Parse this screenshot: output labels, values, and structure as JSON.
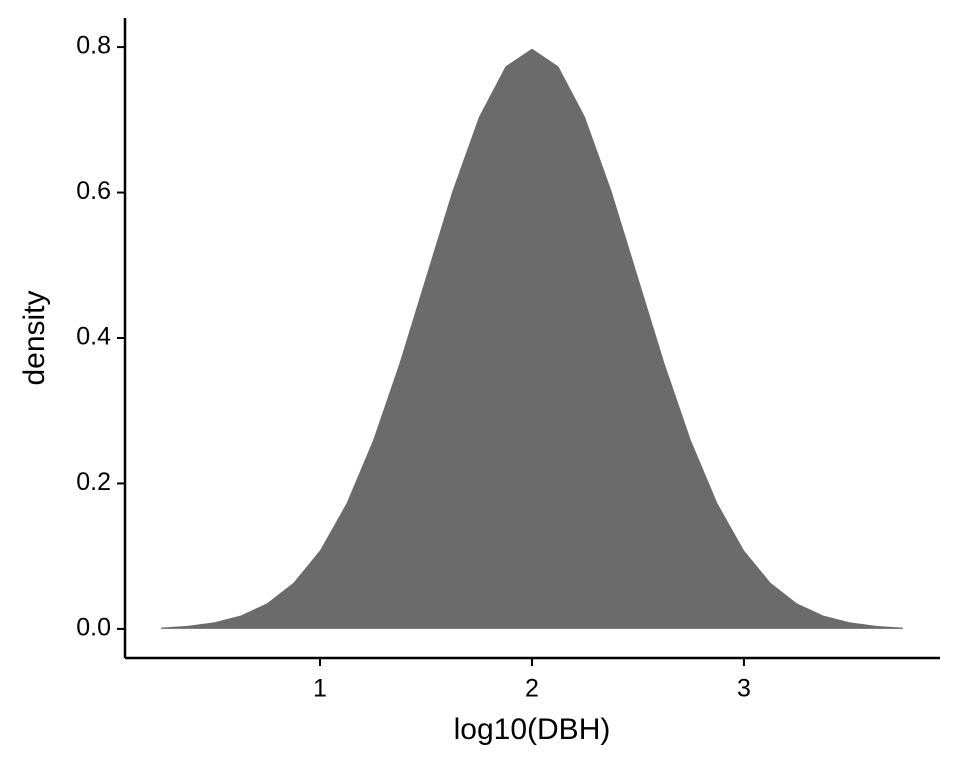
{
  "chart_data": {
    "type": "area",
    "x_label": "log10(DBH)",
    "y_label": "density",
    "x": [
      0.25,
      0.375,
      0.5,
      0.625,
      0.75,
      0.875,
      1.0,
      1.125,
      1.25,
      1.375,
      1.5,
      1.625,
      1.75,
      1.875,
      2.0,
      2.125,
      2.25,
      2.375,
      2.5,
      2.625,
      2.75,
      2.875,
      3.0,
      3.125,
      3.25,
      3.375,
      3.5,
      3.625,
      3.75
    ],
    "values": [
      0.0017,
      0.0041,
      0.0089,
      0.0182,
      0.0351,
      0.0635,
      0.108,
      0.1726,
      0.2591,
      0.3653,
      0.4839,
      0.6023,
      0.7041,
      0.7733,
      0.7979,
      0.7733,
      0.7041,
      0.6023,
      0.4839,
      0.3653,
      0.2591,
      0.1726,
      0.108,
      0.0635,
      0.0351,
      0.0182,
      0.0089,
      0.0041,
      0.0017
    ],
    "color": "#6b6b6b",
    "xlim": [
      0.08,
      3.925
    ],
    "xticks": [
      1,
      2,
      3
    ],
    "ylim": [
      -0.04,
      0.84
    ],
    "yticks": [
      {
        "value": 0,
        "label": "0.0"
      },
      0.2,
      0.4,
      0.6,
      0.8
    ],
    "grid": false
  }
}
